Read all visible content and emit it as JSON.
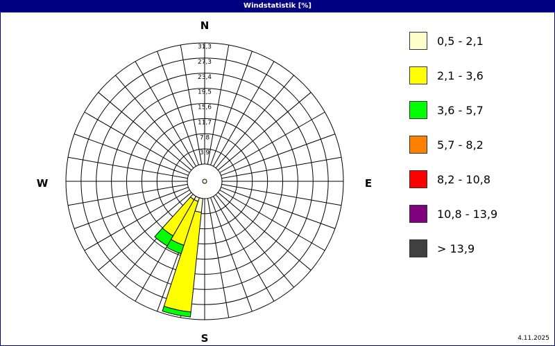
{
  "title": "Windstatistik [%]",
  "date": "4.11.2025",
  "chart_data": {
    "type": "wind-rose",
    "title": "Windstatistik [%]",
    "directions": {
      "n": "N",
      "e": "E",
      "s": "S",
      "w": "W"
    },
    "ring_labels": [
      "3,9",
      "7,8",
      "11,7",
      "15,6",
      "19,5",
      "23,4",
      "27,3",
      "31,3"
    ],
    "rmax": 31.3,
    "legend": [
      {
        "label": "0,5 - 2,1",
        "color": "#ffffcc"
      },
      {
        "label": "2,1 - 3,6",
        "color": "#ffff00"
      },
      {
        "label": "3,6 - 5,7",
        "color": "#00ff00"
      },
      {
        "label": "5,7 - 8,2",
        "color": "#ff8000"
      },
      {
        "label": "8,2 - 10,8",
        "color": "#ff0000"
      },
      {
        "label": "10,8 - 13,9",
        "color": "#800080"
      },
      {
        "label": "> 13,9",
        "color": "#404040"
      }
    ],
    "sectors": [
      {
        "direction_deg": 192,
        "values": [
          3.6,
          25.9,
          1.3,
          0,
          0,
          0,
          0
        ]
      },
      {
        "direction_deg": 204,
        "values": [
          1.0,
          11.9,
          2.3,
          0,
          0,
          0,
          0
        ]
      },
      {
        "direction_deg": 216,
        "values": [
          1.0,
          10.8,
          3.0,
          0,
          0,
          0,
          0
        ]
      }
    ]
  }
}
